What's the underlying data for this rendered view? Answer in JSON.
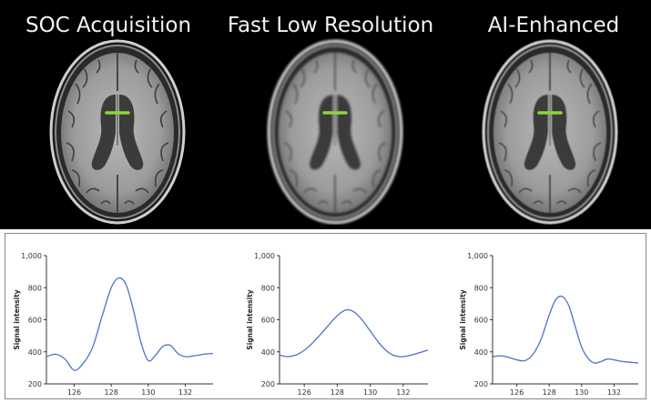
{
  "panels": [
    {
      "title": "SOC Acquisition",
      "plot": {
        "ylabel": "Signal intensity",
        "yticks": [
          "200",
          "400",
          "600",
          "800",
          "1,000"
        ],
        "xticks": [
          "126",
          "128",
          "130",
          "132"
        ],
        "ylim": [
          200,
          1000
        ],
        "xlim": [
          124.5,
          133.5
        ],
        "points": [
          [
            124.5,
            370
          ],
          [
            125.0,
            385
          ],
          [
            125.5,
            355
          ],
          [
            126.0,
            285
          ],
          [
            126.5,
            330
          ],
          [
            127.0,
            430
          ],
          [
            127.5,
            620
          ],
          [
            128.0,
            800
          ],
          [
            128.4,
            860
          ],
          [
            128.8,
            820
          ],
          [
            129.2,
            660
          ],
          [
            129.6,
            460
          ],
          [
            130.0,
            345
          ],
          [
            130.4,
            380
          ],
          [
            130.8,
            435
          ],
          [
            131.2,
            440
          ],
          [
            131.6,
            390
          ],
          [
            132.0,
            370
          ],
          [
            132.5,
            375
          ],
          [
            133.0,
            385
          ],
          [
            133.5,
            390
          ]
        ]
      }
    },
    {
      "title": "Fast Low Resolution",
      "plot": {
        "ylabel": "Signal intensity",
        "yticks": [
          "200",
          "400",
          "600",
          "800",
          "1,000"
        ],
        "xticks": [
          "126",
          "128",
          "130",
          "132"
        ],
        "ylim": [
          200,
          1000
        ],
        "xlim": [
          124.5,
          133.5
        ],
        "points": [
          [
            124.5,
            380
          ],
          [
            125.0,
            370
          ],
          [
            125.5,
            380
          ],
          [
            126.0,
            410
          ],
          [
            126.5,
            455
          ],
          [
            127.0,
            510
          ],
          [
            127.5,
            570
          ],
          [
            128.0,
            625
          ],
          [
            128.5,
            660
          ],
          [
            129.0,
            650
          ],
          [
            129.5,
            600
          ],
          [
            130.0,
            530
          ],
          [
            130.5,
            460
          ],
          [
            131.0,
            405
          ],
          [
            131.5,
            375
          ],
          [
            132.0,
            370
          ],
          [
            132.5,
            380
          ],
          [
            133.0,
            395
          ],
          [
            133.5,
            410
          ]
        ]
      }
    },
    {
      "title": "AI-Enhanced",
      "plot": {
        "ylabel": "Signal intensity",
        "yticks": [
          "200",
          "400",
          "600",
          "800",
          "1,000"
        ],
        "xticks": [
          "126",
          "128",
          "130",
          "132"
        ],
        "ylim": [
          200,
          1000
        ],
        "xlim": [
          124.5,
          133.5
        ],
        "points": [
          [
            124.5,
            370
          ],
          [
            125.0,
            375
          ],
          [
            125.5,
            365
          ],
          [
            126.0,
            350
          ],
          [
            126.5,
            345
          ],
          [
            127.0,
            385
          ],
          [
            127.5,
            480
          ],
          [
            128.0,
            630
          ],
          [
            128.4,
            725
          ],
          [
            128.8,
            745
          ],
          [
            129.2,
            690
          ],
          [
            129.6,
            560
          ],
          [
            130.0,
            430
          ],
          [
            130.4,
            360
          ],
          [
            130.8,
            330
          ],
          [
            131.2,
            340
          ],
          [
            131.6,
            355
          ],
          [
            132.0,
            350
          ],
          [
            132.5,
            340
          ],
          [
            133.0,
            335
          ],
          [
            133.5,
            330
          ]
        ]
      }
    }
  ],
  "colors": {
    "curve": "#4f72c4",
    "measurement_line": "#8bd63a",
    "mri_background": "#000000",
    "plot_background": "#ffffff"
  },
  "chart_data": [
    {
      "type": "line",
      "ylabel": "Signal intensity",
      "ylim": [
        200,
        1000
      ],
      "x": [
        124.5,
        125.0,
        125.5,
        126.0,
        126.5,
        127.0,
        127.5,
        128.0,
        128.4,
        128.8,
        129.2,
        129.6,
        130.0,
        130.4,
        130.8,
        131.2,
        131.6,
        132.0,
        132.5,
        133.0,
        133.5
      ],
      "series": [
        {
          "values": [
            370,
            385,
            355,
            285,
            330,
            430,
            620,
            800,
            860,
            820,
            660,
            460,
            345,
            380,
            435,
            440,
            390,
            370,
            375,
            385,
            390
          ]
        }
      ]
    },
    {
      "type": "line",
      "ylabel": "Signal intensity",
      "ylim": [
        200,
        1000
      ],
      "x": [
        124.5,
        125.0,
        125.5,
        126.0,
        126.5,
        127.0,
        127.5,
        128.0,
        128.5,
        129.0,
        129.5,
        130.0,
        130.5,
        131.0,
        131.5,
        132.0,
        132.5,
        133.0,
        133.5
      ],
      "series": [
        {
          "values": [
            380,
            370,
            380,
            410,
            455,
            510,
            570,
            625,
            660,
            650,
            600,
            530,
            460,
            405,
            375,
            370,
            380,
            395,
            410
          ]
        }
      ]
    },
    {
      "type": "line",
      "ylabel": "Signal intensity",
      "ylim": [
        200,
        1000
      ],
      "x": [
        124.5,
        125.0,
        125.5,
        126.0,
        126.5,
        127.0,
        127.5,
        128.0,
        128.4,
        128.8,
        129.2,
        129.6,
        130.0,
        130.4,
        130.8,
        131.2,
        131.6,
        132.0,
        132.5,
        133.0,
        133.5
      ],
      "series": [
        {
          "values": [
            370,
            375,
            365,
            350,
            345,
            385,
            480,
            630,
            725,
            745,
            690,
            560,
            430,
            360,
            330,
            340,
            355,
            350,
            340,
            335,
            330
          ]
        }
      ]
    }
  ]
}
